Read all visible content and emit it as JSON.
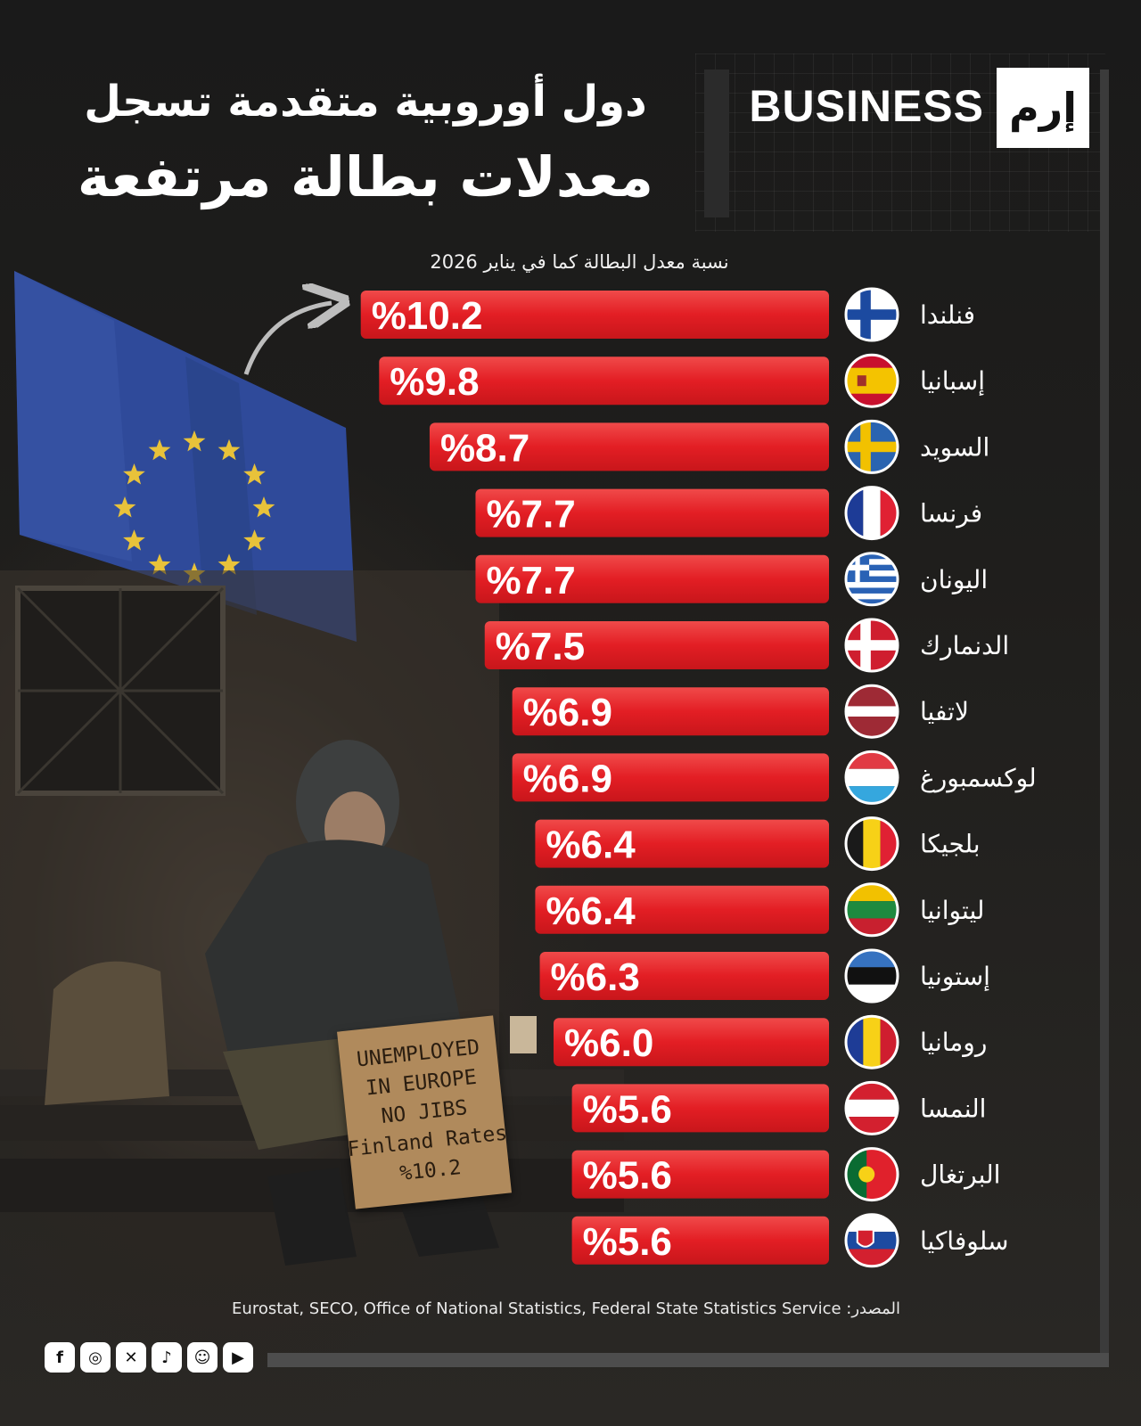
{
  "brand": {
    "logo_text": "إرم",
    "word": "BUSINESS"
  },
  "title": {
    "line1": "دول أوروبية متقدمة تسجل",
    "line2": "معدلات بطالة مرتفعة"
  },
  "subtitle": "نسبة معدل البطالة كما في يناير 2026",
  "sign_lines": [
    "UNEMPLOYED",
    "IN EUROPE",
    "NO JIBS",
    "Finland Rates",
    "%10.2"
  ],
  "source": "المصدر: Eurostat, SECO, Office of National Statistics, Federal State Statistics Service",
  "socials": [
    "facebook-icon",
    "instagram-icon",
    "x-icon",
    "tiktok-icon",
    "snapchat-icon",
    "youtube-icon"
  ],
  "colors": {
    "bar": "#e31e24",
    "bar_light": "#f04a4a",
    "background": "#141414",
    "flag_blue": "#2f4a9a",
    "star": "#e8c23a"
  },
  "chart_data": {
    "type": "bar",
    "orientation": "horizontal",
    "categories": [
      "فنلندا",
      "إسبانيا",
      "السويد",
      "فرنسا",
      "اليونان",
      "الدنمارك",
      "لاتفيا",
      "لوكسمبورغ",
      "بلجيكا",
      "ليتوانيا",
      "إستونيا",
      "رومانيا",
      "النمسا",
      "البرتغال",
      "سلوفاكيا"
    ],
    "values": [
      10.2,
      9.8,
      8.7,
      7.7,
      7.7,
      7.5,
      6.9,
      6.9,
      6.4,
      6.4,
      6.3,
      6.0,
      5.6,
      5.6,
      5.6
    ],
    "labels": [
      "%10.2",
      "%9.8",
      "%8.7",
      "%7.7",
      "%7.7",
      "%7.5",
      "%6.9",
      "%6.9",
      "%6.4",
      "%6.4",
      "%6.3",
      "%6.0",
      "%5.6",
      "%5.6",
      "%5.6"
    ],
    "flags": [
      "finland",
      "spain",
      "sweden",
      "france",
      "greece",
      "denmark",
      "latvia",
      "luxembourg",
      "belgium",
      "lithuania",
      "estonia",
      "romania",
      "austria",
      "portugal",
      "slovakia"
    ],
    "unit": "%",
    "grid": false
  }
}
